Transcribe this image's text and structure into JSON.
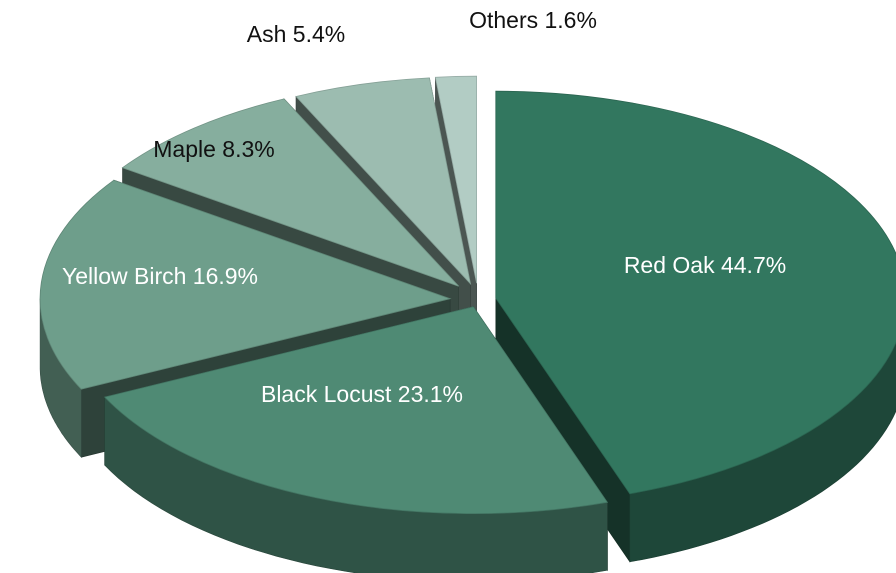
{
  "chart_data": {
    "type": "pie",
    "title": "",
    "slices": [
      {
        "label": "Red Oak",
        "value": 44.7,
        "display": "Red Oak 44.7%",
        "color": "#32775f",
        "label_color": "#ffffff"
      },
      {
        "label": "Black Locust",
        "value": 23.1,
        "display": "Black Locust 23.1%",
        "color": "#4f8a74",
        "label_color": "#ffffff"
      },
      {
        "label": "Yellow Birch",
        "value": 16.9,
        "display": "Yellow Birch 16.9%",
        "color": "#6e9e8b",
        "label_color": "#ffffff"
      },
      {
        "label": "Maple",
        "value": 8.3,
        "display": "Maple 8.3%",
        "color": "#86ae9e",
        "label_color": "#111111"
      },
      {
        "label": "Ash",
        "value": 5.4,
        "display": "Ash 5.4%",
        "color": "#9cbcb0",
        "label_color": "#111111"
      },
      {
        "label": "Others",
        "value": 1.6,
        "display": "Others 1.6%",
        "color": "#b2ccc4",
        "label_color": "#111111"
      }
    ],
    "style": "3d-exploded",
    "legend": "none"
  }
}
